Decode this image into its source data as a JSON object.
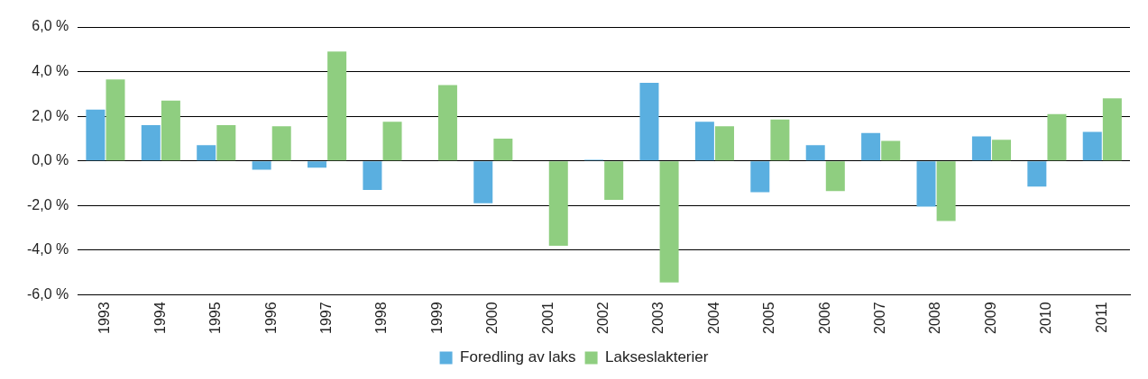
{
  "chart_data": {
    "type": "bar",
    "categories": [
      "1993",
      "1994",
      "1995",
      "1996",
      "1997",
      "1998",
      "1999",
      "2000",
      "2001",
      "2002",
      "2003",
      "2004",
      "2005",
      "2006",
      "2007",
      "2008",
      "2009",
      "2010",
      "2011"
    ],
    "series": [
      {
        "name": "Foredling av laks",
        "color": "#5aafe0",
        "values": [
          2.3,
          1.6,
          0.7,
          -0.4,
          -0.3,
          -1.3,
          0.0,
          -1.9,
          0.0,
          0.05,
          3.5,
          1.75,
          -1.4,
          0.7,
          1.25,
          -2.05,
          1.1,
          -1.15,
          1.3
        ]
      },
      {
        "name": "Lakseslakterier",
        "color": "#8fce80",
        "values": [
          3.65,
          2.7,
          1.6,
          1.55,
          4.9,
          1.75,
          3.4,
          1.0,
          -3.8,
          -1.75,
          -5.45,
          1.55,
          1.85,
          -1.35,
          0.9,
          -2.7,
          0.95,
          2.1,
          2.8
        ]
      }
    ],
    "ylim": [
      -6,
      6
    ],
    "yticks": [
      {
        "value": -6,
        "label": "-6,0 %"
      },
      {
        "value": -4,
        "label": "-4,0 %"
      },
      {
        "value": -2,
        "label": "-2,0 %"
      },
      {
        "value": 0,
        "label": "0,0 %"
      },
      {
        "value": 2,
        "label": "2,0 %"
      },
      {
        "value": 4,
        "label": "4,0 %"
      },
      {
        "value": 6,
        "label": "6,0 %"
      }
    ],
    "grid": "y",
    "legend": "bottom"
  }
}
